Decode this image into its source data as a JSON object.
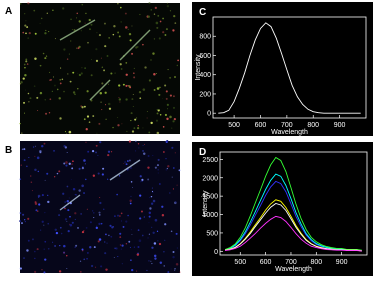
{
  "panel_labels": [
    "A",
    "B",
    "C",
    "D"
  ],
  "chart_data": [
    {
      "type": "line",
      "xlabel": "Wavelength",
      "ylabel": "Intensity",
      "x": [
        440,
        460,
        480,
        500,
        520,
        540,
        560,
        580,
        600,
        620,
        640,
        660,
        680,
        700,
        720,
        740,
        760,
        780,
        800,
        820,
        840,
        860,
        880,
        900,
        920,
        940,
        960,
        980
      ],
      "series": [
        {
          "color": "#ffffff",
          "values": [
            0,
            5,
            30,
            120,
            260,
            420,
            600,
            760,
            880,
            940,
            900,
            780,
            620,
            450,
            290,
            170,
            90,
            40,
            15,
            5,
            0,
            0,
            0,
            0,
            0,
            0,
            0,
            0
          ]
        }
      ],
      "xlim": [
        420,
        1000
      ],
      "xticks": [
        500,
        600,
        700,
        800,
        900
      ],
      "ylim": [
        -50,
        1000
      ],
      "yticks": [
        0,
        200,
        400,
        600,
        800
      ]
    },
    {
      "type": "line",
      "xlabel": "Wavelength",
      "ylabel": "Intensity",
      "x": [
        440,
        460,
        480,
        500,
        520,
        540,
        560,
        580,
        600,
        620,
        640,
        660,
        680,
        700,
        720,
        740,
        760,
        780,
        800,
        820,
        840,
        860,
        880,
        900,
        920,
        940,
        960,
        980
      ],
      "series": [
        {
          "color": "#3333ff",
          "values": [
            40,
            80,
            150,
            290,
            480,
            720,
            990,
            1250,
            1520,
            1750,
            1900,
            1840,
            1620,
            1290,
            950,
            670,
            440,
            290,
            190,
            130,
            100,
            80,
            60,
            60,
            40,
            40,
            40,
            20
          ]
        },
        {
          "color": "#00ffff",
          "values": [
            40,
            80,
            170,
            320,
            530,
            800,
            1090,
            1390,
            1680,
            1930,
            2100,
            2040,
            1790,
            1430,
            1050,
            740,
            480,
            320,
            210,
            150,
            110,
            80,
            60,
            60,
            40,
            40,
            40,
            20
          ]
        },
        {
          "color": "#33ff33",
          "values": [
            50,
            100,
            200,
            380,
            640,
            970,
            1330,
            1680,
            2040,
            2350,
            2550,
            2470,
            2170,
            1730,
            1280,
            890,
            590,
            380,
            260,
            180,
            130,
            100,
            80,
            80,
            50,
            50,
            50,
            30
          ]
        },
        {
          "color": "#ffff00",
          "values": [
            30,
            60,
            110,
            210,
            350,
            530,
            730,
            920,
            1120,
            1290,
            1400,
            1360,
            1190,
            950,
            700,
            490,
            320,
            210,
            140,
            100,
            70,
            60,
            40,
            40,
            30,
            30,
            30,
            10
          ]
        },
        {
          "color": "#ffffff",
          "values": [
            30,
            50,
            100,
            200,
            330,
            490,
            680,
            860,
            1040,
            1200,
            1300,
            1260,
            1110,
            880,
            650,
            460,
            300,
            200,
            130,
            90,
            70,
            50,
            40,
            40,
            30,
            30,
            30,
            10
          ]
        },
        {
          "color": "#ff33ff",
          "values": [
            20,
            40,
            80,
            140,
            240,
            360,
            490,
            630,
            760,
            870,
            950,
            920,
            810,
            650,
            480,
            330,
            220,
            140,
            100,
            70,
            50,
            40,
            30,
            30,
            20,
            20,
            20,
            10
          ]
        }
      ],
      "xlim": [
        420,
        1000
      ],
      "xticks": [
        500,
        600,
        700,
        800,
        900
      ],
      "ylim": [
        -100,
        2700
      ],
      "yticks": [
        0,
        500,
        1000,
        1500,
        2000,
        2500
      ]
    }
  ]
}
